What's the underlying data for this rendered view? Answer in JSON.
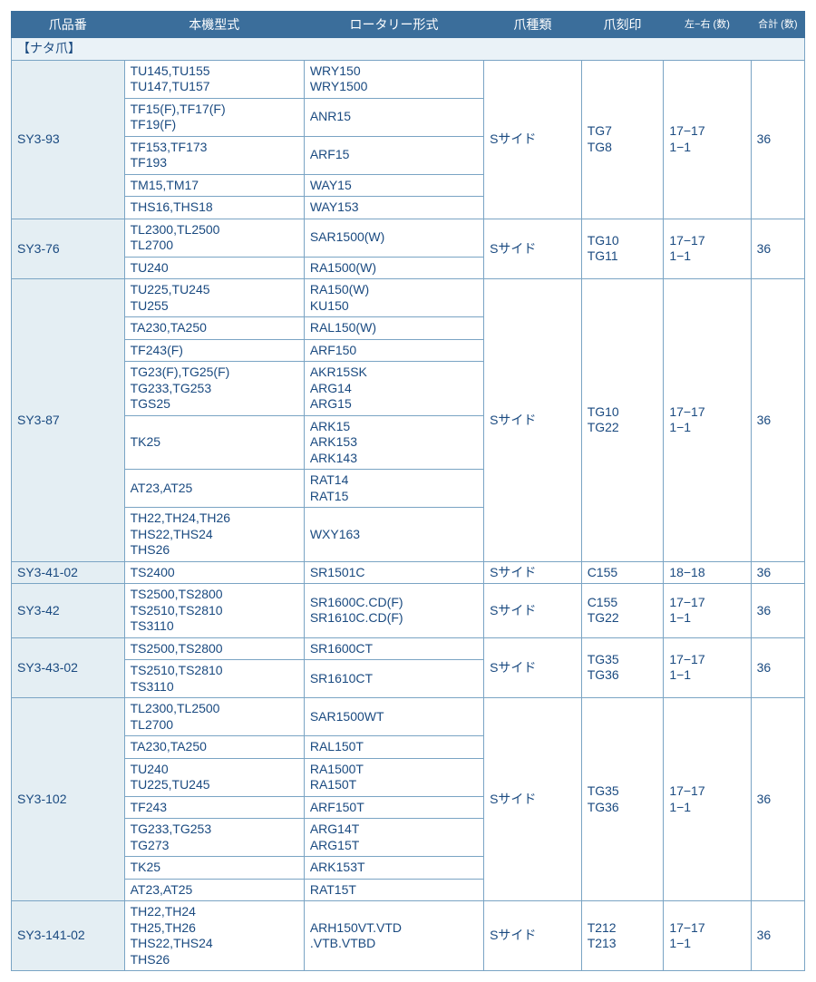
{
  "headers": {
    "col1": "爪品番",
    "col2": "本機型式",
    "col3": "ロータリー形式",
    "col4": "爪種類",
    "col5": "爪刻印",
    "col6": "左−右\n(数)",
    "col7": "合計\n(数)"
  },
  "sectionLabel": "【ナタ爪】",
  "g1": {
    "code": "SY3-93",
    "r1m": "TU145,TU155\nTU147,TU157",
    "r1r": "WRY150\nWRY1500",
    "r2m": "TF15(F),TF17(F)\nTF19(F)",
    "r2r": "ANR15",
    "r3m": "TF153,TF173\nTF193",
    "r3r": "ARF15",
    "r4m": "TM15,TM17",
    "r4r": "WAY15",
    "r5m": "THS16,THS18",
    "r5r": "WAY153",
    "kind": "Sサイド",
    "mark": "TG7\nTG8",
    "lr": "17−17\n1−1",
    "total": "36"
  },
  "g2": {
    "code": "SY3-76",
    "r1m": "TL2300,TL2500\nTL2700",
    "r1r": "SAR1500(W)",
    "r2m": "TU240",
    "r2r": "RA1500(W)",
    "kind": "Sサイド",
    "mark": "TG10\nTG11",
    "lr": "17−17\n1−1",
    "total": "36"
  },
  "g3": {
    "code": "SY3-87",
    "r1m": "TU225,TU245\nTU255",
    "r1r": "RA150(W)\nKU150",
    "r2m": "TA230,TA250",
    "r2r": "RAL150(W)",
    "r3m": "TF243(F)",
    "r3r": "ARF150",
    "r4m": "TG23(F),TG25(F)\nTG233,TG253\nTGS25",
    "r4r": "AKR15SK\nARG14\nARG15",
    "r5m": "TK25",
    "r5r": "ARK15\nARK153\nARK143",
    "r6m": "AT23,AT25",
    "r6r": "RAT14\nRAT15",
    "r7m": "TH22,TH24,TH26\nTHS22,THS24\nTHS26",
    "r7r": "WXY163",
    "kind": "Sサイド",
    "mark": "TG10\nTG22",
    "lr": "17−17\n1−1",
    "total": "36"
  },
  "g4": {
    "code": "SY3-41-02",
    "m": "TS2400",
    "r": "SR1501C",
    "kind": "Sサイド",
    "mark": "C155",
    "lr": "18−18",
    "total": "36"
  },
  "g5": {
    "code": "SY3-42",
    "m": "TS2500,TS2800\nTS2510,TS2810\nTS3110",
    "r": "SR1600C.CD(F)\nSR1610C.CD(F)",
    "kind": "Sサイド",
    "mark": "C155\nTG22",
    "lr": "17−17\n1−1",
    "total": "36"
  },
  "g6": {
    "code": "SY3-43-02",
    "r1m": "TS2500,TS2800",
    "r1r": "SR1600CT",
    "r2m": "TS2510,TS2810\nTS3110",
    "r2r": "SR1610CT",
    "kind": "Sサイド",
    "mark": "TG35\nTG36",
    "lr": "17−17\n1−1",
    "total": "36"
  },
  "g7": {
    "code": "SY3-102",
    "r1m": "TL2300,TL2500\nTL2700",
    "r1r": "SAR1500WT",
    "r2m": "TA230,TA250",
    "r2r": "RAL150T",
    "r3m": "TU240\nTU225,TU245",
    "r3r": "RA1500T\nRA150T",
    "r4m": "TF243",
    "r4r": "ARF150T",
    "r5m": "TG233,TG253\nTG273",
    "r5r": "ARG14T\nARG15T",
    "r6m": "TK25",
    "r6r": "ARK153T",
    "r7m": "AT23,AT25",
    "r7r": "RAT15T",
    "kind": "Sサイド",
    "mark": "TG35\nTG36",
    "lr": "17−17\n1−1",
    "total": "36"
  },
  "g8": {
    "code": "SY3-141-02",
    "m": "TH22,TH24\nTH25,TH26\nTHS22,THS24\nTHS26",
    "r": "ARH150VT.VTD\n.VTB.VTBD",
    "kind": "Sサイド",
    "mark": "T212\nT213",
    "lr": "17−17\n1−1",
    "total": "36"
  }
}
